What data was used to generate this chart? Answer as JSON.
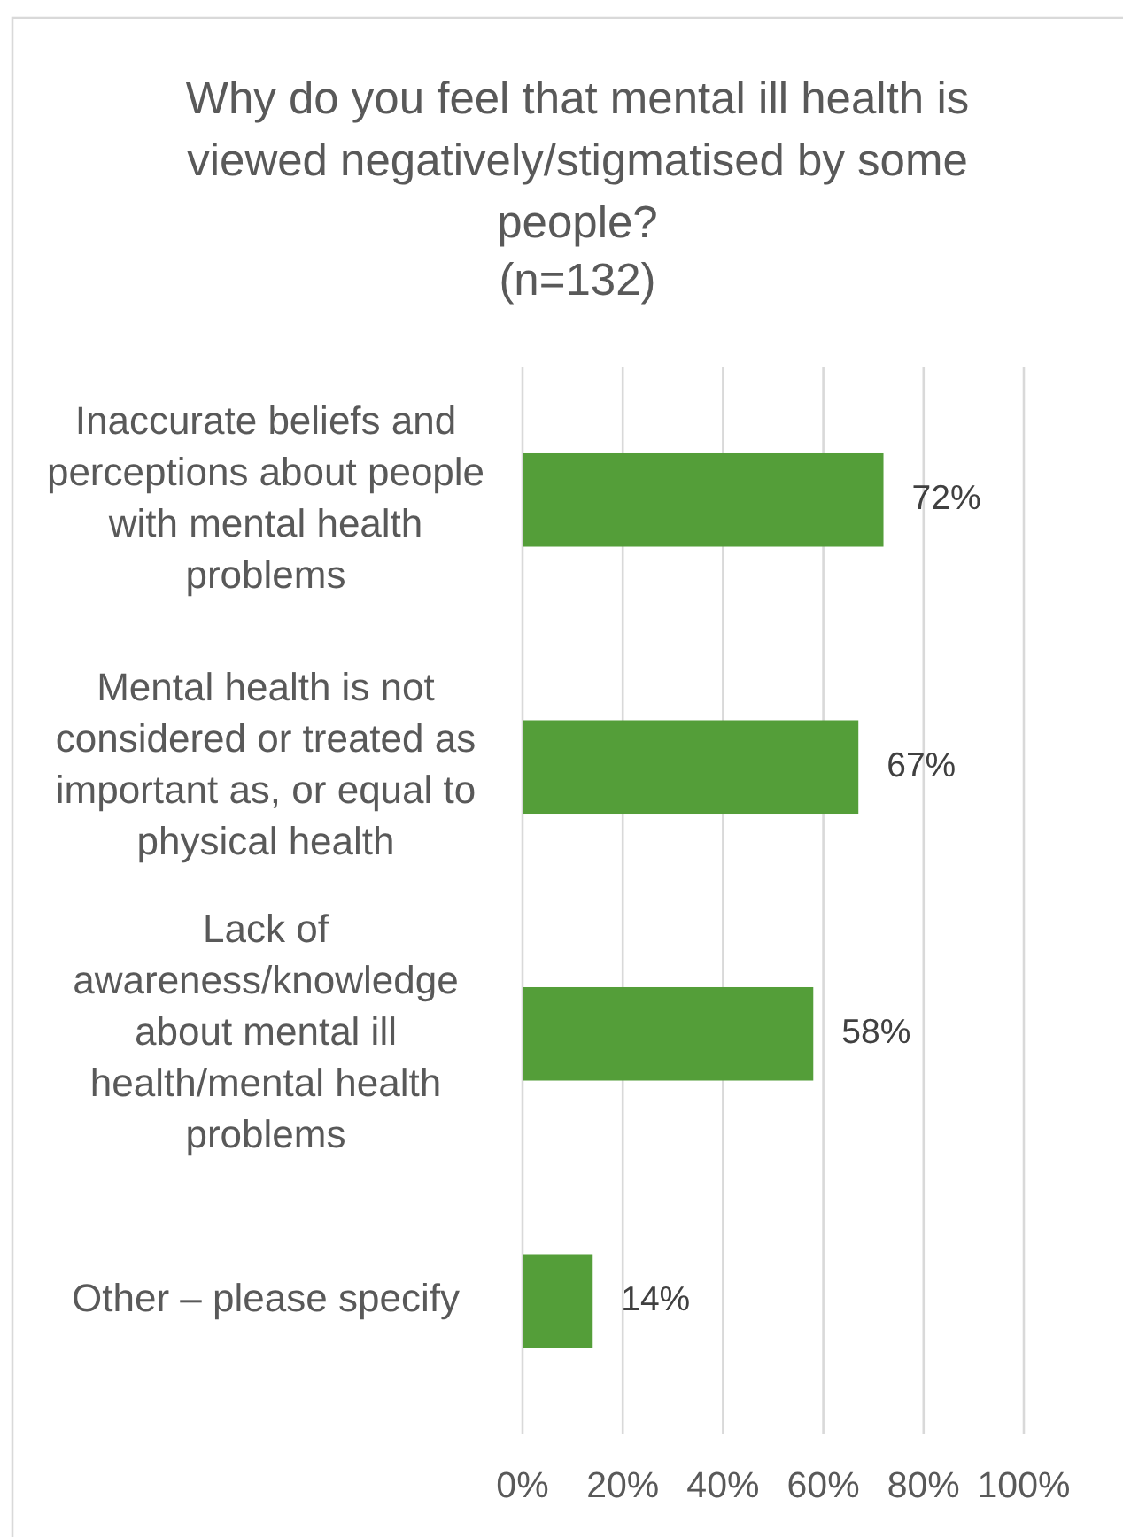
{
  "chart_data": {
    "type": "bar",
    "orientation": "horizontal",
    "title": "Why do you feel that mental ill health is viewed negatively/stigmatised by some people?",
    "subtitle": "(n=132)",
    "categories": [
      "Inaccurate beliefs and perceptions about people with mental health problems",
      "Mental health is not considered or treated as important as, or equal to physical health",
      "Lack of awareness/knowledge about mental ill health/mental health problems",
      "Other – please specify"
    ],
    "values": [
      72,
      67,
      58,
      14
    ],
    "color": "#549e39",
    "value_labels": [
      "72%",
      "67%",
      "58%",
      "14%"
    ],
    "xlim": [
      0,
      100
    ],
    "xticks": [
      {
        "value": 0,
        "label": "0%"
      },
      {
        "value": 20,
        "label": "20%"
      },
      {
        "value": 40,
        "label": "40%"
      },
      {
        "value": 60,
        "label": "60%"
      },
      {
        "value": 80,
        "label": "80%"
      },
      {
        "value": 100,
        "label": "100%"
      }
    ],
    "grid": "x"
  }
}
